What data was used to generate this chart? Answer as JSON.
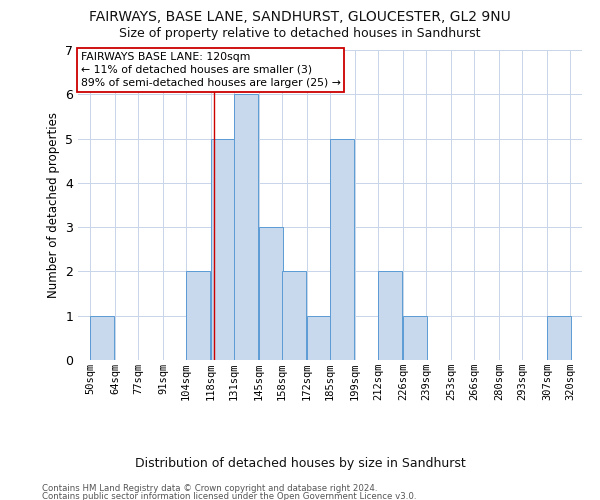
{
  "title": "FAIRWAYS, BASE LANE, SANDHURST, GLOUCESTER, GL2 9NU",
  "subtitle": "Size of property relative to detached houses in Sandhurst",
  "xlabel": "Distribution of detached houses by size in Sandhurst",
  "ylabel": "Number of detached properties",
  "bin_labels": [
    "50sqm",
    "64sqm",
    "77sqm",
    "91sqm",
    "104sqm",
    "118sqm",
    "131sqm",
    "145sqm",
    "158sqm",
    "172sqm",
    "185sqm",
    "199sqm",
    "212sqm",
    "226sqm",
    "239sqm",
    "253sqm",
    "266sqm",
    "280sqm",
    "293sqm",
    "307sqm",
    "320sqm"
  ],
  "bin_edges": [
    50,
    64,
    77,
    91,
    104,
    118,
    131,
    145,
    158,
    172,
    185,
    199,
    212,
    226,
    239,
    253,
    266,
    280,
    293,
    307,
    320
  ],
  "bar_heights": [
    1,
    0,
    0,
    0,
    2,
    5,
    6,
    3,
    2,
    1,
    5,
    0,
    2,
    1,
    0,
    0,
    0,
    0,
    0,
    1
  ],
  "bar_color": "#c9d9ed",
  "bar_edgecolor": "#5b9bd5",
  "subject_value": 120,
  "subject_line_color": "#cc0000",
  "annotation_line1": "FAIRWAYS BASE LANE: 120sqm",
  "annotation_line2": "← 11% of detached houses are smaller (3)",
  "annotation_line3": "89% of semi-detached houses are larger (25) →",
  "annotation_box_color": "#ffffff",
  "annotation_box_edgecolor": "#cc0000",
  "ylim": [
    0,
    7
  ],
  "yticks": [
    0,
    1,
    2,
    3,
    4,
    5,
    6,
    7
  ],
  "footer1": "Contains HM Land Registry data © Crown copyright and database right 2024.",
  "footer2": "Contains public sector information licensed under the Open Government Licence v3.0.",
  "background_color": "#ffffff",
  "grid_color": "#c8d4e8"
}
